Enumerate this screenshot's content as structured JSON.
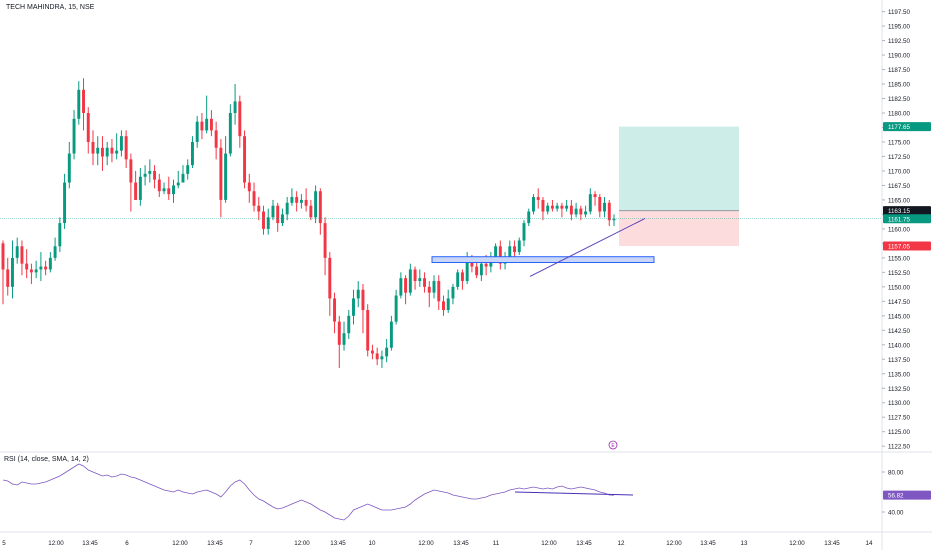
{
  "header": {
    "title": "TECH MAHINDRA, 15, NSE"
  },
  "indicator": {
    "label": "RSI (14, close, SMA, 14, 2)"
  },
  "price_badges": {
    "target": {
      "text": "1177.65",
      "value": 1177.65,
      "color": "#089981"
    },
    "entry": {
      "text": "1163.15",
      "value": 1163.15,
      "color": "#131722"
    },
    "last": {
      "text": "1161.75",
      "value": 1161.75,
      "color": "#089981"
    },
    "stop": {
      "text": "1157.05",
      "value": 1157.05,
      "color": "#f23645"
    }
  },
  "rsi_badge": {
    "text": "56.82",
    "value": 56.82,
    "color": "#7e57c2"
  },
  "event_marker": {
    "text": "E"
  },
  "colors": {
    "up": "#089981",
    "down": "#f23645",
    "rsi": "#7e57c2",
    "axis_text": "#131722",
    "grid": "#f0f3fa",
    "profit_zone": "#cdeee8",
    "loss_zone": "#fcdcdc",
    "support_fill": "#c9d6f5",
    "support_stroke": "#2962ff",
    "trendline": "#5b3fc4"
  },
  "chart_data": {
    "type": "candlestick",
    "title": "TECH MAHINDRA, 15, NSE",
    "price_axis": {
      "ylim": [
        1121.5,
        1199.5
      ],
      "ticks": [
        1197.5,
        1195.0,
        1192.5,
        1190.0,
        1187.5,
        1185.0,
        1182.5,
        1180.0,
        1177.5,
        1175.0,
        1172.5,
        1170.0,
        1167.5,
        1165.0,
        1162.5,
        1160.0,
        1157.5,
        1155.0,
        1152.5,
        1150.0,
        1147.5,
        1145.0,
        1142.5,
        1140.0,
        1137.5,
        1135.0,
        1132.5,
        1130.0,
        1127.5,
        1125.0,
        1122.5
      ],
      "tick_labels": [
        "1197.50",
        "1195.00",
        "1192.50",
        "1190.00",
        "1187.50",
        "1185.00",
        "1182.50",
        "1180.00",
        "1177.50",
        "1175.00",
        "1172.50",
        "1170.00",
        "1167.50",
        "1165.00",
        "1162.50",
        "1160.00",
        "1157.50",
        "1155.00",
        "1152.50",
        "1150.00",
        "1147.50",
        "1145.00",
        "1142.50",
        "1140.00",
        "1137.50",
        "1135.00",
        "1132.50",
        "1130.00",
        "1127.50",
        "1125.00",
        "1122.50"
      ]
    },
    "time_axis": {
      "labels": [
        "5",
        "12:00",
        "13:45",
        "6",
        "12:00",
        "13:45",
        "7",
        "12:00",
        "13:45",
        "10",
        "12:00",
        "13:45",
        "11",
        "12:00",
        "13:45",
        "12",
        "12:00",
        "13:45",
        "13",
        "12:00",
        "13:45",
        "14"
      ],
      "positions": [
        4,
        56,
        90,
        127,
        180,
        215,
        251,
        302,
        338,
        372,
        426,
        461,
        496,
        549,
        584,
        621,
        674,
        708,
        744,
        797,
        832,
        869
      ]
    },
    "series": [
      {
        "name": "",
        "candles": [
          [
            1157.5,
            1153,
            1158,
            1147
          ],
          [
            1153,
            1150,
            1155,
            1148.5
          ],
          [
            1150,
            1155,
            1158,
            1148
          ],
          [
            1155,
            1157,
            1158.5,
            1154
          ],
          [
            1157,
            1154,
            1158,
            1152
          ],
          [
            1154,
            1153,
            1156.5,
            1151.5
          ],
          [
            1153,
            1152.5,
            1154,
            1150.5
          ],
          [
            1152.5,
            1153,
            1154.5,
            1151.5
          ],
          [
            1153,
            1153.5,
            1156,
            1151
          ],
          [
            1153.5,
            1153,
            1154.5,
            1152
          ],
          [
            1153,
            1155,
            1156,
            1152.5
          ],
          [
            1155,
            1157,
            1158.5,
            1154.5
          ],
          [
            1157,
            1161,
            1162,
            1156
          ],
          [
            1161,
            1168,
            1169.5,
            1160
          ],
          [
            1168,
            1173,
            1175,
            1167
          ],
          [
            1173,
            1179,
            1180.5,
            1172
          ],
          [
            1179,
            1184,
            1185.5,
            1178
          ],
          [
            1184,
            1180,
            1186,
            1177
          ],
          [
            1180,
            1175,
            1181,
            1173
          ],
          [
            1175,
            1173,
            1177,
            1171
          ],
          [
            1173,
            1174,
            1176,
            1171
          ],
          [
            1174,
            1172.5,
            1176,
            1170
          ],
          [
            1172.5,
            1174,
            1175,
            1171
          ],
          [
            1174,
            1173,
            1175.5,
            1171.5
          ],
          [
            1173,
            1173.5,
            1176.5,
            1172
          ],
          [
            1173.5,
            1176,
            1177,
            1172.5
          ],
          [
            1176,
            1172,
            1177,
            1170.5
          ],
          [
            1172,
            1168,
            1173,
            1163
          ],
          [
            1168,
            1165,
            1170,
            1165
          ],
          [
            1165,
            1169,
            1170.5,
            1164
          ],
          [
            1169,
            1169.5,
            1171,
            1167.5
          ],
          [
            1169.5,
            1170,
            1172,
            1168
          ],
          [
            1170,
            1168.5,
            1171,
            1167
          ],
          [
            1168.5,
            1166.5,
            1169.5,
            1165.5
          ],
          [
            1166.5,
            1167,
            1168,
            1166
          ],
          [
            1167,
            1166,
            1169,
            1165
          ],
          [
            1166,
            1167.5,
            1168.5,
            1164.5
          ],
          [
            1167.5,
            1168,
            1170,
            1167
          ],
          [
            1168,
            1169.5,
            1171,
            1168
          ],
          [
            1169.5,
            1171,
            1172,
            1168.5
          ],
          [
            1171,
            1175,
            1176,
            1170.5
          ],
          [
            1175,
            1178.5,
            1179.5,
            1174
          ],
          [
            1178.5,
            1177,
            1180,
            1175.5
          ],
          [
            1177,
            1179,
            1183,
            1176.5
          ],
          [
            1179,
            1177,
            1180.5,
            1176
          ],
          [
            1177,
            1174,
            1178.5,
            1172
          ],
          [
            1174,
            1165,
            1175.5,
            1162
          ],
          [
            1165,
            1173,
            1176,
            1164.5
          ],
          [
            1173,
            1180,
            1181.5,
            1172.5
          ],
          [
            1180,
            1182,
            1185,
            1178
          ],
          [
            1182,
            1176,
            1183,
            1174
          ],
          [
            1176,
            1168,
            1177,
            1167
          ],
          [
            1168,
            1166.5,
            1169.5,
            1164.5
          ],
          [
            1166.5,
            1164,
            1168,
            1163
          ],
          [
            1164,
            1163,
            1165.5,
            1161.5
          ],
          [
            1163,
            1160,
            1164,
            1159
          ],
          [
            1160,
            1162,
            1163.5,
            1159
          ],
          [
            1162,
            1164,
            1165,
            1161.5
          ],
          [
            1164,
            1161,
            1164.5,
            1159.5
          ],
          [
            1161,
            1162.5,
            1163.5,
            1160.5
          ],
          [
            1162.5,
            1164.5,
            1165.5,
            1161.5
          ],
          [
            1164.5,
            1165.5,
            1167,
            1164
          ],
          [
            1165.5,
            1164.5,
            1166.5,
            1163
          ],
          [
            1164.5,
            1165,
            1166,
            1163.5
          ],
          [
            1165,
            1164,
            1167,
            1163
          ],
          [
            1164,
            1162,
            1165,
            1161.5
          ],
          [
            1162,
            1166.5,
            1167.5,
            1161
          ],
          [
            1166.5,
            1161,
            1167,
            1159
          ],
          [
            1161,
            1155,
            1162,
            1152
          ],
          [
            1155,
            1148,
            1156,
            1145
          ],
          [
            1148,
            1144,
            1149,
            1142
          ],
          [
            1144,
            1140,
            1145,
            1136
          ],
          [
            1140,
            1142,
            1144,
            1139
          ],
          [
            1142,
            1145,
            1146,
            1141
          ],
          [
            1145,
            1148,
            1149.5,
            1143.5
          ],
          [
            1148,
            1149.5,
            1151,
            1146.5
          ],
          [
            1149.5,
            1146,
            1150.5,
            1142
          ],
          [
            1146,
            1139,
            1147,
            1138
          ],
          [
            1139,
            1138.5,
            1140,
            1137.5
          ],
          [
            1138.5,
            1137.5,
            1139.5,
            1136.5
          ],
          [
            1137.5,
            1138,
            1139,
            1136
          ],
          [
            1138,
            1139.5,
            1141,
            1137
          ],
          [
            1139.5,
            1144,
            1145,
            1139
          ],
          [
            1144,
            1148.5,
            1149.5,
            1143.5
          ],
          [
            1148.5,
            1151.5,
            1152.5,
            1148
          ],
          [
            1151.5,
            1149,
            1152,
            1147
          ],
          [
            1149,
            1153,
            1154,
            1148.5
          ],
          [
            1153,
            1151,
            1153.5,
            1149.5
          ],
          [
            1151,
            1151.5,
            1153,
            1150
          ],
          [
            1151.5,
            1150,
            1152.5,
            1149
          ],
          [
            1150,
            1149,
            1151,
            1146.5
          ],
          [
            1149,
            1151,
            1152,
            1148
          ],
          [
            1151,
            1147.5,
            1152,
            1146
          ],
          [
            1147.5,
            1146,
            1148.5,
            1145
          ],
          [
            1146,
            1148,
            1149.5,
            1145.5
          ],
          [
            1148,
            1150,
            1150.5,
            1147
          ],
          [
            1150,
            1152.5,
            1153,
            1149.5
          ],
          [
            1152.5,
            1151,
            1153,
            1149.5
          ],
          [
            1151,
            1154.5,
            1156,
            1150.5
          ],
          [
            1154.5,
            1153.5,
            1155.5,
            1152.5
          ],
          [
            1153.5,
            1152,
            1155,
            1151.5
          ],
          [
            1152,
            1154,
            1155,
            1151
          ],
          [
            1154,
            1153.5,
            1155.5,
            1152
          ],
          [
            1153.5,
            1155,
            1156,
            1152.5
          ],
          [
            1155,
            1157,
            1157.5,
            1154.5
          ],
          [
            1157,
            1154,
            1158,
            1153
          ],
          [
            1154,
            1155,
            1156,
            1153
          ],
          [
            1155,
            1157,
            1158,
            1154.5
          ],
          [
            1157,
            1156,
            1158,
            1155
          ],
          [
            1156,
            1158,
            1158.5,
            1155.5
          ],
          [
            1158,
            1161,
            1161.5,
            1157
          ],
          [
            1161,
            1163,
            1163.5,
            1160.5
          ],
          [
            1163,
            1165.5,
            1166,
            1162.5
          ],
          [
            1165.5,
            1165,
            1167,
            1163.5
          ],
          [
            1165,
            1163,
            1165.5,
            1161.5
          ],
          [
            1163,
            1164,
            1164.5,
            1162.5
          ],
          [
            1164,
            1163.5,
            1165,
            1163
          ],
          [
            1163.5,
            1164,
            1164.5,
            1163
          ],
          [
            1164,
            1163.5,
            1164.5,
            1162
          ],
          [
            1163.5,
            1164,
            1165,
            1163
          ],
          [
            1164,
            1162.5,
            1165,
            1161.5
          ],
          [
            1162.5,
            1163.5,
            1164.5,
            1162
          ],
          [
            1163.5,
            1162.5,
            1164,
            1161.5
          ],
          [
            1162.5,
            1163,
            1164,
            1162
          ],
          [
            1163,
            1166,
            1167,
            1162.5
          ],
          [
            1166,
            1165.5,
            1166.5,
            1164
          ],
          [
            1165.5,
            1163,
            1166,
            1162
          ],
          [
            1163,
            1164.5,
            1165.5,
            1162
          ],
          [
            1164.5,
            1161.5,
            1165,
            1160.5
          ],
          [
            1161.5,
            1161.75,
            1162.5,
            1160.5
          ]
        ]
      },
      {
        "name": "",
        "kind": "rsi",
        "ylim": [
          20,
          100
        ],
        "ticks": [
          80,
          40
        ],
        "tick_labels": [
          "80.00",
          "40.00"
        ],
        "values": [
          72,
          71,
          68,
          67,
          70,
          69,
          68,
          68,
          69,
          70,
          72,
          74,
          76,
          79,
          82,
          85,
          88,
          86,
          82,
          80,
          78,
          76,
          77,
          75,
          76,
          78,
          77,
          75,
          74,
          72,
          70,
          68,
          66,
          64,
          62,
          61,
          60,
          62,
          60,
          59,
          58,
          60,
          61,
          62,
          60,
          58,
          55,
          60,
          66,
          70,
          72,
          68,
          62,
          57,
          53,
          51,
          48,
          45,
          43,
          44,
          46,
          48,
          50,
          52,
          50,
          48,
          45,
          42,
          40,
          37,
          34,
          33,
          32,
          36,
          42,
          44,
          46,
          48,
          46,
          44,
          42,
          42,
          42,
          43,
          44,
          45,
          48,
          52,
          55,
          58,
          60,
          62,
          61,
          60,
          59,
          57,
          56,
          55,
          54,
          53,
          53,
          54,
          55,
          57,
          58,
          59,
          60,
          62,
          63,
          64,
          63,
          64,
          65,
          64,
          63,
          64,
          63,
          65,
          66,
          64,
          63,
          64,
          65,
          64,
          63,
          62,
          60,
          59,
          57,
          56.82
        ]
      }
    ],
    "drawings": {
      "support_zone": [
        1154.2,
        1155.2
      ],
      "rising_trendline": [
        [
          1151.8,
          1161.8
        ]
      ],
      "position": {
        "target": 1177.65,
        "entry": 1163.15,
        "stop": 1157.05
      },
      "rsi_trendline": [
        60,
        57
      ]
    }
  }
}
